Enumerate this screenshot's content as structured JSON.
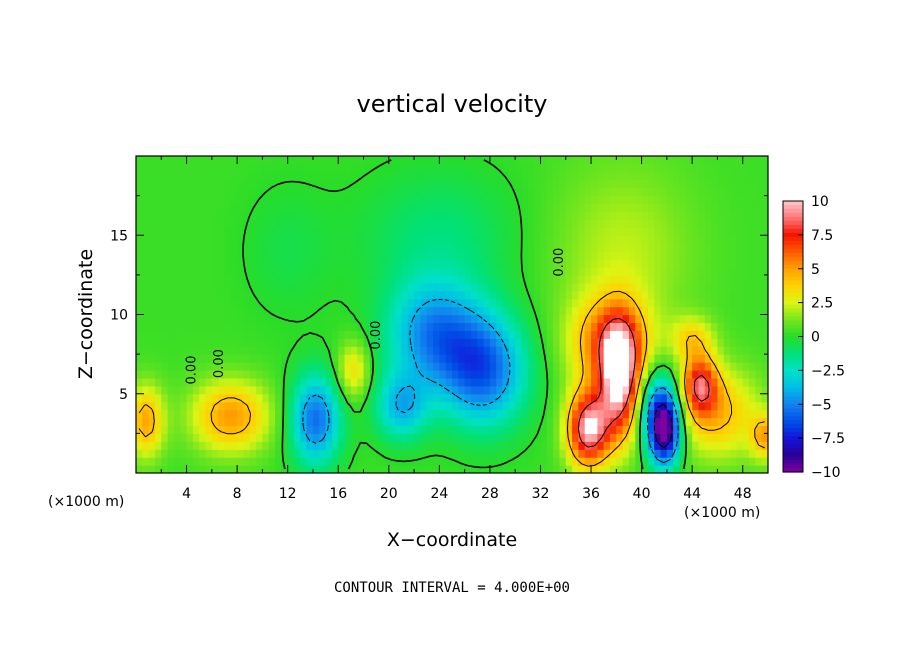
{
  "chart_data": {
    "type": "heatmap",
    "title": "vertical velocity",
    "xlabel": "X−coordinate",
    "ylabel": "Z−coordinate",
    "x_unit_left": "(×1000 m)",
    "x_unit_right": "(×1000 m)",
    "note": "CONTOUR INTERVAL = 4.000E+00",
    "xlim": [
      0,
      50
    ],
    "ylim": [
      0,
      20
    ],
    "xticks": [
      4,
      8,
      12,
      16,
      20,
      24,
      28,
      32,
      36,
      40,
      44,
      48
    ],
    "yticks": [
      5,
      10,
      15
    ],
    "colorbar": {
      "min": -10,
      "max": 10,
      "tick_values": [
        10,
        7.5,
        5,
        2.5,
        0,
        -2.5,
        -5,
        -7.5,
        -10
      ],
      "tick_labels": [
        "10",
        "7.5",
        "5",
        "2.5",
        "0",
        "−2.5",
        "−5",
        "−7.5",
        "−10"
      ]
    },
    "contour_labels": [
      {
        "text": "0.00",
        "x": 33.8,
        "z": 13.3,
        "angle": -90
      },
      {
        "text": "0.00",
        "x": 19.3,
        "z": 8.7,
        "angle": -90
      },
      {
        "text": "0.00",
        "x": 6.9,
        "z": 6.9,
        "angle": -90
      },
      {
        "text": "0.00",
        "x": 4.7,
        "z": 6.5,
        "angle": -90
      }
    ],
    "features": [
      {
        "x": 0.8,
        "z": 3.3,
        "sx": 1.0,
        "sz": 1.6,
        "w": 4.5
      },
      {
        "x": 7.5,
        "z": 3.6,
        "sx": 2.2,
        "sz": 1.6,
        "w": 4.8
      },
      {
        "x": 14.2,
        "z": 3.4,
        "sx": 1.4,
        "sz": 2.0,
        "w": -5.8
      },
      {
        "x": 17.2,
        "z": 6.5,
        "sx": 0.9,
        "sz": 1.3,
        "w": 3.2
      },
      {
        "x": 23.5,
        "z": 8.8,
        "sx": 2.6,
        "sz": 2.4,
        "w": -5.0
      },
      {
        "x": 27.5,
        "z": 6.5,
        "sx": 2.4,
        "sz": 2.5,
        "w": -6.0
      },
      {
        "x": 21.0,
        "z": 4.2,
        "sx": 1.5,
        "sz": 1.5,
        "w": -4.0
      },
      {
        "x": 35.8,
        "z": 2.8,
        "sx": 1.2,
        "sz": 1.7,
        "w": 9.5
      },
      {
        "x": 38.3,
        "z": 5.8,
        "sx": 1.1,
        "sz": 2.6,
        "w": 9.0
      },
      {
        "x": 37.5,
        "z": 8.2,
        "sx": 2.2,
        "sz": 2.0,
        "w": 5.5
      },
      {
        "x": 41.8,
        "z": 2.6,
        "sx": 0.9,
        "sz": 1.5,
        "w": -10.0
      },
      {
        "x": 41.4,
        "z": 4.5,
        "sx": 1.2,
        "sz": 1.6,
        "w": -4.5
      },
      {
        "x": 44.6,
        "z": 5.6,
        "sx": 1.0,
        "sz": 1.3,
        "w": 6.5
      },
      {
        "x": 46.0,
        "z": 3.8,
        "sx": 2.4,
        "sz": 2.0,
        "w": 4.0
      },
      {
        "x": 44.0,
        "z": 8.5,
        "sx": 1.2,
        "sz": 1.0,
        "w": 3.0
      },
      {
        "x": 49.8,
        "z": 2.3,
        "sx": 0.8,
        "sz": 1.0,
        "w": 4.0
      },
      {
        "x": 38.5,
        "z": 14.0,
        "sx": 4.0,
        "sz": 4.0,
        "w": 1.8
      },
      {
        "x": 24.0,
        "z": 15.0,
        "sx": 4.5,
        "sz": 3.0,
        "w": -1.5
      },
      {
        "x": 12.0,
        "z": 14.0,
        "sx": 2.5,
        "sz": 3.0,
        "w": -0.8
      }
    ]
  }
}
